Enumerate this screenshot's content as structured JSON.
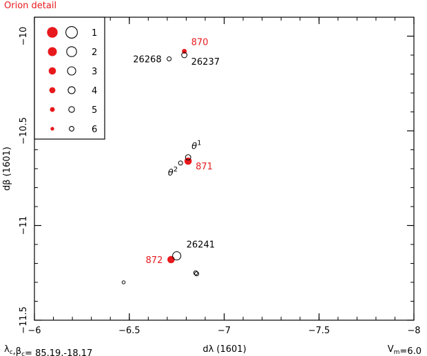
{
  "header": {
    "title": "Orion detail"
  },
  "footer": {
    "left_text": "λc,βc= 85.19,-18.17",
    "right_text": "Vm=6.0"
  },
  "colors": {
    "accent": "#e8191c",
    "ink": "#000000"
  },
  "chart_data": {
    "type": "scatter",
    "title": "Orion detail",
    "xlabel": "dλ (1601)",
    "ylabel": "dβ (1601)",
    "xlim": [
      -6,
      -8
    ],
    "ylim": [
      -11.5,
      -9.9
    ],
    "x_ticks": [
      -6,
      -6.5,
      -7,
      -7.5,
      -8
    ],
    "x_tick_labels": [
      "−6",
      "−6.5",
      "−7",
      "−7.5",
      "−8"
    ],
    "y_ticks": [
      -10,
      -10.5,
      -11,
      -11.5
    ],
    "y_tick_labels": [
      "−10",
      "−10.5",
      "−11",
      "−11.5"
    ],
    "grid": false,
    "legend": {
      "placement": "top-left",
      "magnitudes": [
        "1",
        "2",
        "3",
        "4",
        "5",
        "6"
      ]
    },
    "series": [
      {
        "kind": "filled-red",
        "points": [
          {
            "x": -6.79,
            "y": -10.08,
            "mag": 5,
            "label": "870"
          },
          {
            "x": -6.81,
            "y": -10.66,
            "mag": 3,
            "label": "871"
          },
          {
            "x": -6.72,
            "y": -11.18,
            "mag": 3,
            "label": "872"
          }
        ]
      },
      {
        "kind": "open-black",
        "points": [
          {
            "x": -6.71,
            "y": -10.12,
            "mag": 5,
            "label": "26268"
          },
          {
            "x": -6.79,
            "y": -10.1,
            "mag": 4,
            "label": "26237"
          },
          {
            "x": -6.81,
            "y": -10.64,
            "mag": 4,
            "label": "θ1"
          },
          {
            "x": -6.77,
            "y": -10.67,
            "mag": 5,
            "label": "θ2"
          },
          {
            "x": -6.75,
            "y": -11.16,
            "mag": 2,
            "label": "26241"
          },
          {
            "x": -6.85,
            "y": -11.25,
            "mag": 5,
            "label": ""
          },
          {
            "x": -6.855,
            "y": -11.255,
            "mag": 5,
            "label": ""
          },
          {
            "x": -6.47,
            "y": -11.3,
            "mag": 6,
            "label": ""
          }
        ]
      }
    ]
  }
}
